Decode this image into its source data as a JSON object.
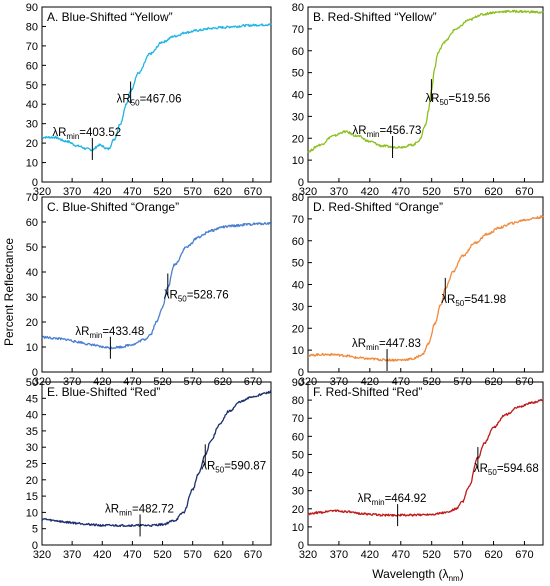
{
  "figure": {
    "ylabel": "Percent Reflectance",
    "xlabel_main": "Wavelength (λ",
    "xlabel_sub": "nm",
    "xlabel_close": ")"
  },
  "chart_data": [
    {
      "type": "line",
      "title": "A. Blue-Shifted “Yellow”",
      "color": "#1fb4e6",
      "xlim": [
        320,
        700
      ],
      "ylim": [
        0,
        90
      ],
      "xticks": [
        320,
        370,
        420,
        470,
        520,
        570,
        620,
        670
      ],
      "yticks": [
        0,
        10,
        20,
        30,
        40,
        50,
        60,
        70,
        80,
        90
      ],
      "x": [
        320,
        340,
        360,
        380,
        395,
        403.5,
        415,
        430,
        440,
        450,
        460,
        467,
        480,
        500,
        520,
        540,
        560,
        580,
        600,
        620,
        640,
        660,
        680,
        700
      ],
      "y": [
        23,
        23,
        21,
        18.5,
        17,
        16.5,
        19,
        17,
        22,
        30,
        40,
        47,
        56,
        66,
        72,
        75,
        77,
        78,
        79,
        79.5,
        80,
        80.5,
        80.8,
        81
      ],
      "annotations": [
        {
          "label": "λR",
          "sub": "min",
          "text": "=403.52",
          "x": 403.52,
          "y": 17
        },
        {
          "label": "λR",
          "sub": "50",
          "text": "=467.06",
          "x": 467.06,
          "y": 46
        }
      ]
    },
    {
      "type": "line",
      "title": "B. Red-Shifted “Yellow”",
      "color": "#8cbf1f",
      "xlim": [
        320,
        700
      ],
      "ylim": [
        0,
        80
      ],
      "xticks": [
        320,
        370,
        420,
        470,
        520,
        570,
        620,
        670
      ],
      "yticks": [
        0,
        10,
        20,
        30,
        40,
        50,
        60,
        70,
        80
      ],
      "x": [
        320,
        340,
        360,
        380,
        400,
        420,
        440,
        456.7,
        470,
        490,
        500,
        510,
        515,
        519.6,
        525,
        530,
        540,
        560,
        580,
        600,
        620,
        640,
        660,
        680,
        700
      ],
      "y": [
        14,
        17,
        21,
        23,
        21,
        18.5,
        16.5,
        16,
        16,
        17,
        19,
        26,
        33,
        42,
        52,
        59,
        64,
        70,
        74,
        76.5,
        77.5,
        78,
        78,
        77.8,
        77.5
      ],
      "annotations": [
        {
          "label": "λR",
          "sub": "min",
          "text": "=456.73",
          "x": 456.73,
          "y": 16
        },
        {
          "label": "λR",
          "sub": "50",
          "text": "=519.56",
          "x": 519.56,
          "y": 42
        }
      ]
    },
    {
      "type": "line",
      "title": "C. Blue-Shifted “Orange”",
      "color": "#4a7fd0",
      "xlim": [
        320,
        700
      ],
      "ylim": [
        0,
        70
      ],
      "xticks": [
        320,
        370,
        420,
        470,
        520,
        570,
        620,
        670
      ],
      "yticks": [
        0,
        10,
        20,
        30,
        40,
        50,
        60,
        70
      ],
      "x": [
        320,
        340,
        360,
        380,
        400,
        420,
        433.5,
        450,
        470,
        490,
        500,
        510,
        520,
        528.8,
        540,
        560,
        580,
        600,
        620,
        640,
        660,
        680,
        700
      ],
      "y": [
        14,
        13.5,
        13,
        12,
        11,
        10,
        9.7,
        10,
        11,
        13,
        15,
        20,
        26,
        34,
        43,
        50,
        54,
        56.5,
        58,
        58.5,
        59,
        59.3,
        59.5
      ],
      "annotations": [
        {
          "label": "λR",
          "sub": "min",
          "text": "=433.48",
          "x": 433.48,
          "y": 9.7
        },
        {
          "label": "λR",
          "sub": "50",
          "text": "=528.76",
          "x": 528.76,
          "y": 35
        }
      ]
    },
    {
      "type": "line",
      "title": "D. Red-Shifted “Orange”",
      "color": "#f08a3c",
      "xlim": [
        320,
        700
      ],
      "ylim": [
        0,
        80
      ],
      "xticks": [
        320,
        370,
        420,
        470,
        520,
        570,
        620,
        670
      ],
      "yticks": [
        0,
        10,
        20,
        30,
        40,
        50,
        60,
        70,
        80
      ],
      "x": [
        320,
        340,
        360,
        380,
        400,
        420,
        447.8,
        470,
        490,
        505,
        515,
        525,
        535,
        542,
        555,
        570,
        590,
        610,
        630,
        650,
        670,
        690,
        700
      ],
      "y": [
        7.5,
        8,
        8,
        7.5,
        6.5,
        6,
        5.5,
        5.5,
        6,
        8,
        13,
        22,
        31,
        38,
        46,
        53,
        59,
        63,
        66,
        68,
        69.5,
        70.5,
        71
      ],
      "annotations": [
        {
          "label": "λR",
          "sub": "min",
          "text": "=447.83",
          "x": 447.83,
          "y": 5.5
        },
        {
          "label": "λR",
          "sub": "50",
          "text": "=541.98",
          "x": 541.98,
          "y": 38
        }
      ]
    },
    {
      "type": "line",
      "title": "E. Blue-Shifted “Red”",
      "color": "#1c2e6e",
      "xlim": [
        320,
        700
      ],
      "ylim": [
        0,
        50
      ],
      "xticks": [
        320,
        370,
        420,
        470,
        520,
        570,
        620,
        670
      ],
      "yticks": [
        0,
        5,
        10,
        15,
        20,
        25,
        30,
        35,
        40,
        45,
        50
      ],
      "x": [
        320,
        340,
        360,
        380,
        400,
        420,
        440,
        460,
        482.7,
        500,
        520,
        540,
        555,
        570,
        580,
        590.9,
        600,
        615,
        630,
        650,
        670,
        690,
        700
      ],
      "y": [
        8,
        7.5,
        7,
        6.7,
        6.3,
        6,
        6,
        6,
        6,
        6,
        6.3,
        7.5,
        10,
        17,
        22,
        27.5,
        32,
        37,
        41,
        44,
        45.5,
        46.5,
        47
      ],
      "annotations": [
        {
          "label": "λR",
          "sub": "min",
          "text": "=482.72",
          "x": 482.72,
          "y": 6
        },
        {
          "label": "λR",
          "sub": "50",
          "text": "=590.87",
          "x": 590.87,
          "y": 27.5
        }
      ]
    },
    {
      "type": "line",
      "title": "F. Red-Shifted “Red”",
      "color": "#bf1a1a",
      "xlim": [
        320,
        700
      ],
      "ylim": [
        0,
        90
      ],
      "xticks": [
        320,
        370,
        420,
        470,
        520,
        570,
        620,
        670
      ],
      "yticks": [
        0,
        10,
        20,
        30,
        40,
        50,
        60,
        70,
        80,
        90
      ],
      "x": [
        320,
        340,
        360,
        380,
        400,
        420,
        440,
        464.9,
        490,
        520,
        545,
        560,
        570,
        580,
        594.7,
        605,
        620,
        640,
        660,
        680,
        700
      ],
      "y": [
        17,
        18,
        19,
        18.5,
        17.5,
        17,
        16.5,
        16.5,
        16.5,
        17,
        18,
        20,
        24,
        32,
        48,
        56,
        65,
        72,
        76,
        78.5,
        80
      ],
      "annotations": [
        {
          "label": "λR",
          "sub": "min",
          "text": "=464.92",
          "x": 464.92,
          "y": 16.5
        },
        {
          "label": "λR",
          "sub": "50",
          "text": "=594.68",
          "x": 594.68,
          "y": 48
        }
      ]
    }
  ]
}
